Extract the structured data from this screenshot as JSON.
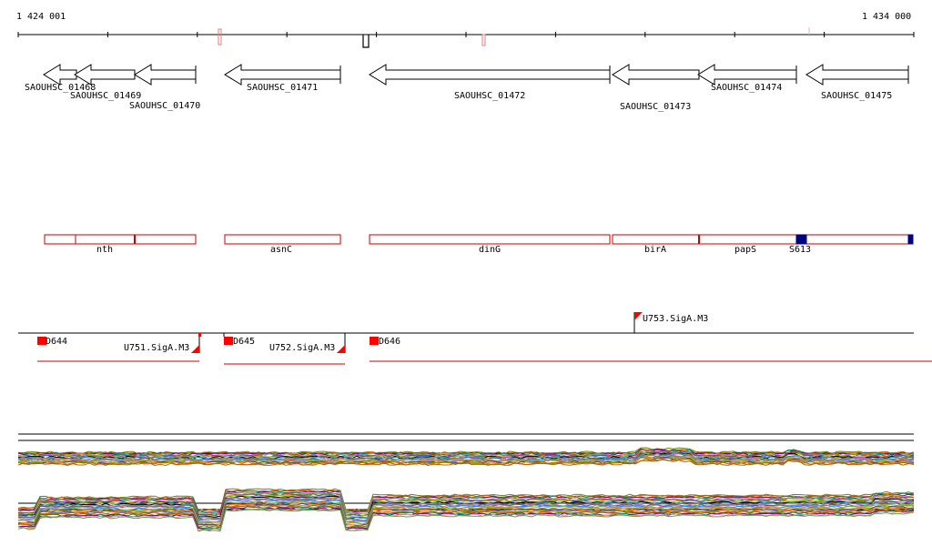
{
  "ruler": {
    "start_label": "1 424 001",
    "end_label": "1 434 000",
    "start_coord": 1424001,
    "end_coord": 1434000
  },
  "genes": [
    {
      "id": "SAOUHSC_01468",
      "strand": "-"
    },
    {
      "id": "SAOUHSC_01469",
      "strand": "-"
    },
    {
      "id": "SAOUHSC_01470",
      "strand": "-"
    },
    {
      "id": "SAOUHSC_01471",
      "strand": "-"
    },
    {
      "id": "SAOUHSC_01472",
      "strand": "-"
    },
    {
      "id": "SAOUHSC_01473",
      "strand": "-"
    },
    {
      "id": "SAOUHSC_01474",
      "strand": "-"
    },
    {
      "id": "SAOUHSC_01475",
      "strand": "-"
    }
  ],
  "annotations": [
    "nth",
    "asnC",
    "dinG",
    "birA",
    "papS",
    "S613"
  ],
  "operons": {
    "downstream": [
      "D644",
      "D645",
      "D646"
    ],
    "upstream": [
      "U751.SigA.M3",
      "U752.SigA.M3",
      "U753.SigA.M3"
    ]
  },
  "colors": {
    "feature": "#cc0000",
    "srna": "#000080",
    "axis": "#000000"
  }
}
